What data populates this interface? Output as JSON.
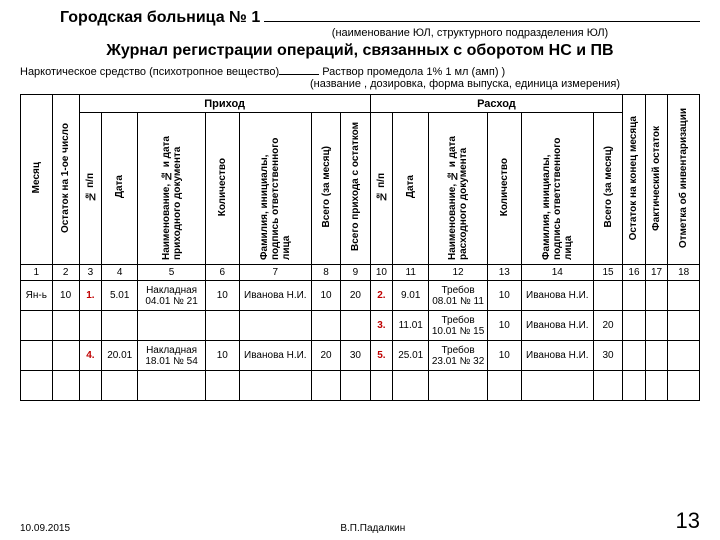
{
  "header": {
    "hospital": "Городская больница № 1",
    "caption": "(наименование ЮЛ, структурного подразделения ЮЛ)",
    "title": "Журнал регистрации операций, связанных с оборотом НС и ПВ",
    "substance_label": "Наркотическое средство (психотропное вещество)",
    "substance_value": "Раствор промедола 1% 1 мл (амп) )",
    "substance_caption": "(название , дозировка, форма выпуска,  единица измерения)"
  },
  "columns": {
    "c1": "Месяц",
    "c2": "Остаток на 1-ое число",
    "c3": "№ п/п",
    "c4": "Дата",
    "c5": "Наименование, № и дата приходного документа",
    "c6": "Количество",
    "c7": "Фамилия, инициалы, подпись ответственного лица",
    "c8": "Всего (за месяц)",
    "c9": "Всего прихода с остатком",
    "c10": "№ п/п",
    "c11": "Дата",
    "c12": "Наименование, № и дата расходного документа",
    "c13": "Количество",
    "c14": "Фамилия, инициалы, подпись ответственного лица",
    "c15": "Всего (за месяц)",
    "c16": "Остаток на конец месяца",
    "c17": "Фактический остаток",
    "c18": "Отметка об инвентаризации",
    "grp_prihod": "Приход",
    "grp_rashod": "Расход"
  },
  "nums": {
    "n1": "1",
    "n2": "2",
    "n3": "3",
    "n4": "4",
    "n5": "5",
    "n6": "6",
    "n7": "7",
    "n8": "8",
    "n9": "9",
    "n10": "10",
    "n11": "11",
    "n12": "12",
    "n13": "13",
    "n14": "14",
    "n15": "15",
    "n16": "16",
    "n17": "17",
    "n18": "18"
  },
  "rows": [
    {
      "c1": "Ян-ь",
      "c2": "10",
      "c3": "1.",
      "c3red": true,
      "c4": "5.01",
      "c5": "Накладная 04.01 № 21",
      "c6": "10",
      "c7": "Иванова Н.И.",
      "c8": "10",
      "c9": "20",
      "c10": "2.",
      "c10red": true,
      "c11": "9.01",
      "c12": "Требов 08.01 № 11",
      "c13": "10",
      "c14": "Иванова Н.И.",
      "c15": "",
      "c16": "",
      "c17": "",
      "c18": ""
    },
    {
      "c1": "",
      "c2": "",
      "c3": "",
      "c4": "",
      "c5": "",
      "c6": "",
      "c7": "",
      "c8": "",
      "c9": "",
      "c10": "3.",
      "c10red": true,
      "c11": "11.01",
      "c12": "Требов 10.01 № 15",
      "c13": "10",
      "c14": "Иванова Н.И.",
      "c15": "20",
      "c16": "",
      "c17": "",
      "c18": ""
    },
    {
      "c1": "",
      "c2": "",
      "c3": "4.",
      "c3red": true,
      "c4": "20.01",
      "c5": "Накладная 18.01 № 54",
      "c6": "10",
      "c7": "Иванова Н.И.",
      "c8": "20",
      "c9": "30",
      "c10": "5.",
      "c10red": true,
      "c11": "25.01",
      "c12": "Требов 23.01 № 32",
      "c13": "10",
      "c14": "Иванова Н.И.",
      "c15": "30",
      "c16": "",
      "c17": "",
      "c18": ""
    },
    {
      "c1": "",
      "c2": "",
      "c3": "",
      "c4": "",
      "c5": "",
      "c6": "",
      "c7": "",
      "c8": "",
      "c9": "",
      "c10": "",
      "c11": "",
      "c12": "",
      "c13": "",
      "c14": "",
      "c15": "",
      "c16": "",
      "c17": "",
      "c18": ""
    }
  ],
  "footer": {
    "date": "10.09.2015",
    "author": "В.П.Падалкин",
    "page": "13"
  },
  "widths": [
    "28",
    "24",
    "20",
    "32",
    "60",
    "30",
    "64",
    "26",
    "26",
    "20",
    "32",
    "52",
    "30",
    "64",
    "26",
    "20",
    "20",
    "28"
  ]
}
